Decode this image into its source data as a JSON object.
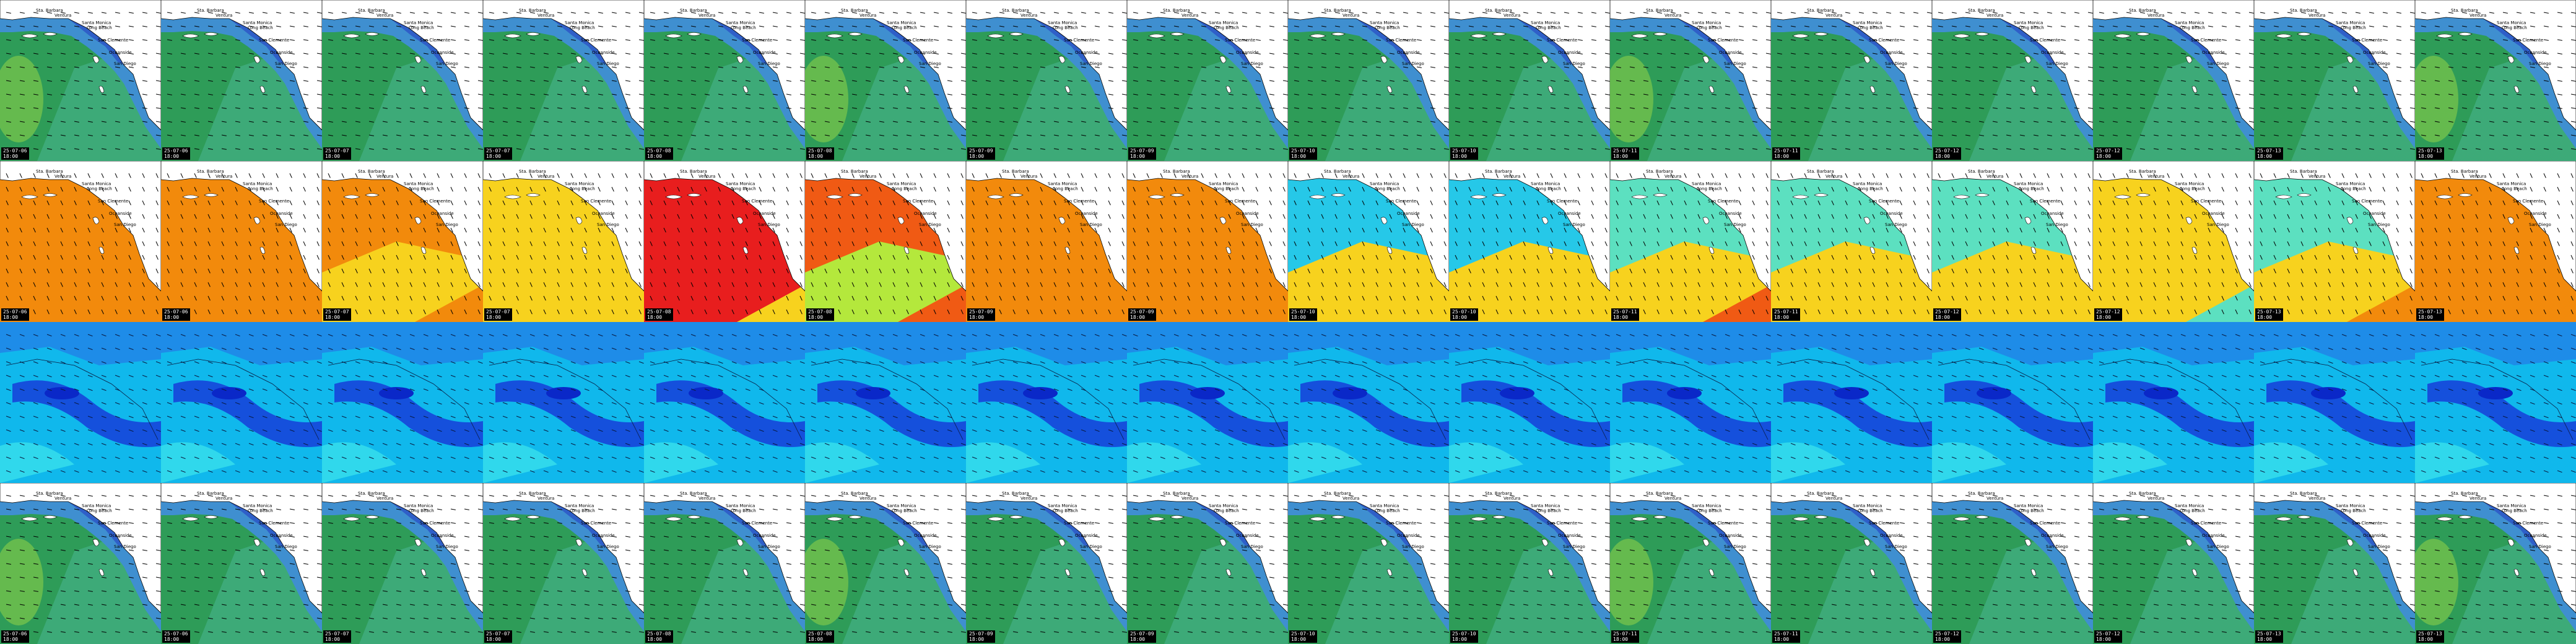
{
  "title": "",
  "grid": {
    "rows": 4,
    "cols": 16
  },
  "labels": [
    {
      "key": "santa_barbara",
      "text": "Sta. Barbara"
    },
    {
      "key": "ventura",
      "text": "Ventura"
    },
    {
      "key": "santa_monica",
      "text": "Santa Monica"
    },
    {
      "key": "long_beach",
      "text": "Long Beach"
    },
    {
      "key": "san_clemente",
      "text": "San Clemente"
    },
    {
      "key": "oceanside",
      "text": "Oceanside"
    },
    {
      "key": "san_diego",
      "text": "San Diego"
    }
  ],
  "frames": [
    {
      "date": "25-07-06",
      "time": "18:00"
    },
    {
      "date": "25-07-06",
      "time": "18:00"
    },
    {
      "date": "25-07-07",
      "time": "18:00"
    },
    {
      "date": "25-07-07",
      "time": "18:00"
    },
    {
      "date": "25-07-08",
      "time": "18:00"
    },
    {
      "date": "25-07-08",
      "time": "18:00"
    },
    {
      "date": "25-07-09",
      "time": "18:00"
    },
    {
      "date": "25-07-09",
      "time": "18:00"
    },
    {
      "date": "25-07-10",
      "time": "18:00"
    },
    {
      "date": "25-07-10",
      "time": "18:00"
    },
    {
      "date": "25-07-11",
      "time": "18:00"
    },
    {
      "date": "25-07-11",
      "time": "18:00"
    },
    {
      "date": "25-07-12",
      "time": "18:00"
    },
    {
      "date": "25-07-12",
      "time": "18:00"
    },
    {
      "date": "25-07-13",
      "time": "18:00"
    },
    {
      "date": "25-07-13",
      "time": "18:00"
    }
  ],
  "rows": [
    {
      "name": "row-wave-height",
      "kind": "sea",
      "colors": {
        "base": "#2e9c58",
        "mid": "#3daa78",
        "near": "#3f8fd0",
        "coast": "#2f5fc8",
        "accent": "#7ec84a"
      },
      "arrow_dir": 10,
      "stamp": true
    },
    {
      "name": "row-wave-period",
      "kind": "period",
      "colors": {
        "a": "#f28a0c",
        "b": "#f7d21e",
        "c": "#e81e1e",
        "d": "#f05a14",
        "e": "#26c8e8",
        "f": "#5ce0c0",
        "g": "#b4e83c"
      },
      "arrow_dir": 65,
      "stamp": true
    },
    {
      "name": "row-wind-speed",
      "kind": "wind",
      "colors": {
        "base": "#10b8ec",
        "mid": "#1e8ce8",
        "dark": "#1550dc",
        "deep": "#0a28c8",
        "light": "#30d8ec"
      },
      "arrow_dir": 20,
      "stamp": false
    },
    {
      "name": "row-sea-state",
      "kind": "sea",
      "colors": {
        "base": "#2e9c58",
        "mid": "#3daa78",
        "near": "#3f8fd0",
        "coast": "#2f5fc8",
        "accent": "#7ec84a"
      },
      "arrow_dir": 10,
      "stamp": true
    }
  ],
  "period_variants": [
    [
      "a",
      "a",
      "a"
    ],
    [
      "a",
      "a",
      "a"
    ],
    [
      "a",
      "b",
      "a"
    ],
    [
      "b",
      "b",
      "b"
    ],
    [
      "c",
      "c",
      "b"
    ],
    [
      "d",
      "g",
      "d"
    ],
    [
      "a",
      "a",
      "a"
    ],
    [
      "a",
      "a",
      "a"
    ],
    [
      "e",
      "b",
      "b"
    ],
    [
      "e",
      "b",
      "b"
    ],
    [
      "f",
      "b",
      "d"
    ],
    [
      "f",
      "b",
      "b"
    ],
    [
      "f",
      "b",
      "b"
    ],
    [
      "b",
      "b",
      "f"
    ],
    [
      "f",
      "b",
      "a"
    ],
    [
      "a",
      "a",
      "a"
    ]
  ]
}
